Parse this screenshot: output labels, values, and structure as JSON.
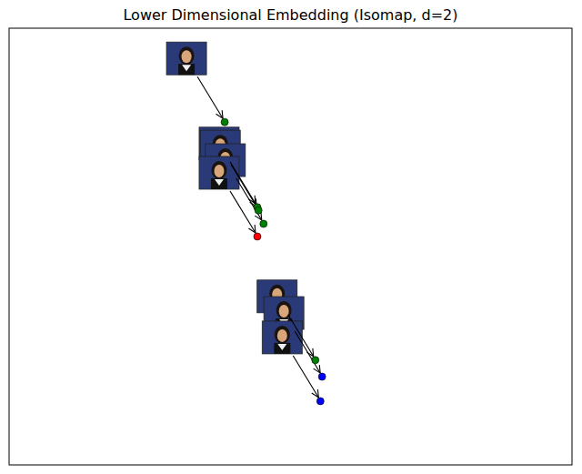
{
  "chart_data": {
    "type": "scatter",
    "title": "Lower Dimensional Embedding (Isomap, d=2)",
    "x": [
      38.3,
      44.1,
      44.3,
      45.2,
      44.1,
      54.4,
      55.6,
      55.3
    ],
    "values": [
      78.5,
      59.0,
      58.3,
      55.2,
      52.3,
      24.0,
      20.2,
      14.6
    ],
    "colors": [
      "#008000",
      "#008000",
      "#008000",
      "#008000",
      "#ff0000",
      "#008000",
      "#0000ff",
      "#0000ff"
    ],
    "xlim": [
      0,
      100
    ],
    "ylim": [
      0,
      100
    ],
    "tick_labels": false,
    "marker": "circle"
  }
}
